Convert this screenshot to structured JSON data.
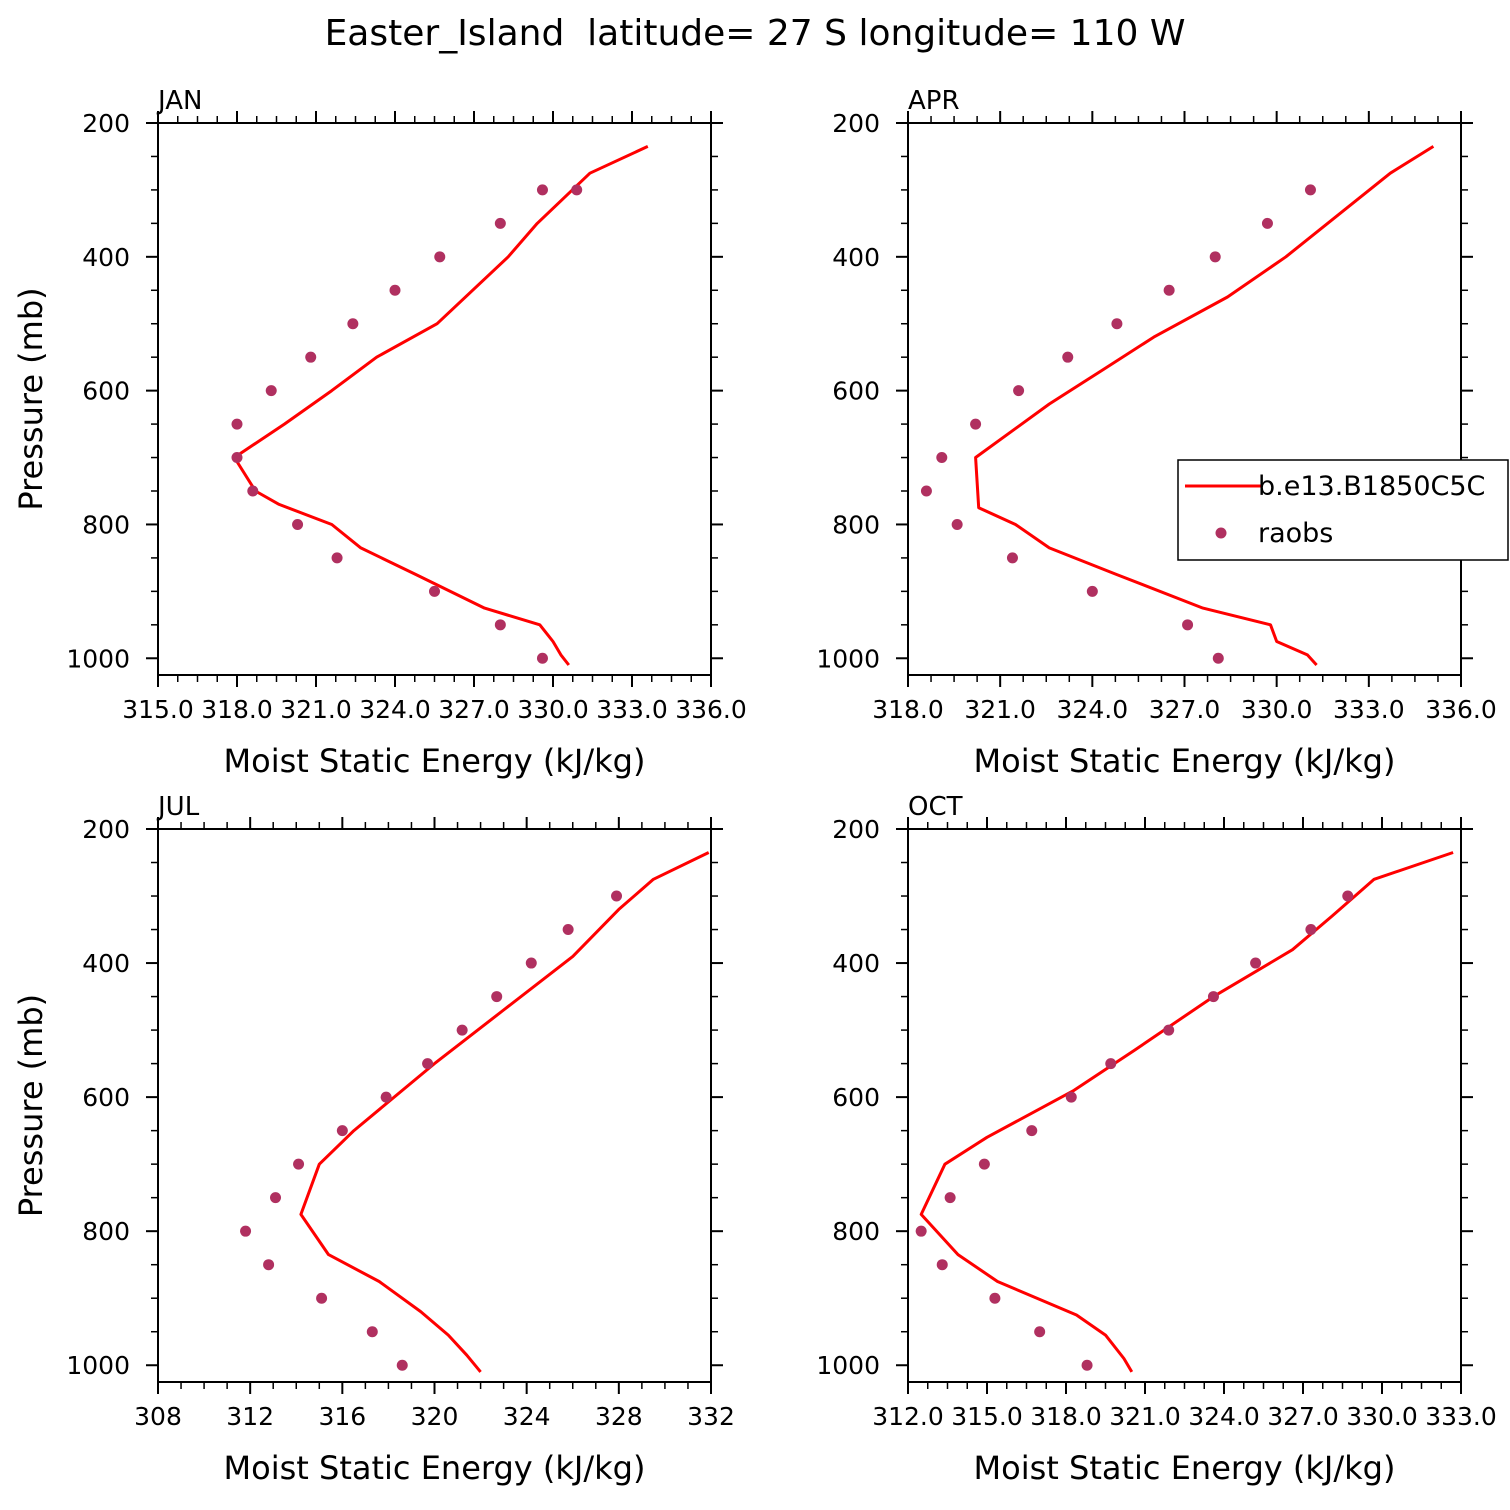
{
  "title": "Easter_Island  latitude= 27 S longitude= 110 W",
  "colors": {
    "model": "#ff0000",
    "obs": "#b03060",
    "axis": "#000000"
  },
  "legend": {
    "placement": "right-middle of APR panel",
    "model_label": "b.e13.B1850C5C",
    "obs_label": "raobs"
  },
  "chart_data": [
    {
      "type": "line",
      "panel": "JAN",
      "xlabel": "Moist Static Energy (kJ/kg)",
      "ylabel": "Pressure (mb)",
      "xlim": [
        315.0,
        336.0
      ],
      "x_ticks": [
        "315.0",
        "318.0",
        "321.0",
        "324.0",
        "327.0",
        "330.0",
        "333.0",
        "336.0"
      ],
      "x_tick_values": [
        315,
        318,
        321,
        324,
        327,
        330,
        333,
        336
      ],
      "ylim": [
        1025,
        200
      ],
      "y_ticks": [
        200,
        400,
        600,
        800,
        1000
      ],
      "series": [
        {
          "name": "b.e13.B1850C5C",
          "kind": "line",
          "x": [
            330.6,
            330.3,
            330.0,
            329.5,
            327.4,
            324.8,
            322.7,
            321.6,
            319.6,
            318.7,
            317.9,
            319.8,
            321.6,
            323.3,
            325.6,
            328.3,
            329.4,
            331.4,
            333.6
          ],
          "p": [
            1010,
            995,
            975,
            950,
            925,
            875,
            835,
            800,
            770,
            750,
            700,
            650,
            600,
            550,
            500,
            400,
            350,
            275,
            235
          ]
        },
        {
          "name": "raobs",
          "kind": "scatter",
          "x": [
            329.6,
            328.0,
            325.5,
            321.8,
            320.3,
            318.6,
            318.0,
            318.0,
            319.3,
            320.8,
            322.4,
            324.0,
            325.7,
            328.0,
            329.6,
            330.9
          ],
          "p": [
            1000,
            950,
            900,
            850,
            800,
            750,
            700,
            650,
            600,
            550,
            500,
            450,
            400,
            350,
            300,
            300
          ]
        }
      ]
    },
    {
      "type": "line",
      "panel": "APR",
      "xlabel": "Moist Static Energy (kJ/kg)",
      "ylabel": "",
      "xlim": [
        318.0,
        336.0
      ],
      "x_ticks": [
        "318.0",
        "321.0",
        "324.0",
        "327.0",
        "330.0",
        "333.0",
        "336.0"
      ],
      "x_tick_values": [
        318,
        321,
        324,
        327,
        330,
        333,
        336
      ],
      "ylim": [
        1025,
        200
      ],
      "y_ticks": [
        200,
        400,
        600,
        800,
        1000
      ],
      "series": [
        {
          "name": "b.e13.B1850C5C",
          "kind": "line",
          "x": [
            331.3,
            331.0,
            330.0,
            329.8,
            327.6,
            324.8,
            322.6,
            321.5,
            320.3,
            320.2,
            322.6,
            324.3,
            326.0,
            328.4,
            330.3,
            333.7,
            335.1
          ],
          "p": [
            1010,
            995,
            975,
            950,
            925,
            875,
            835,
            800,
            775,
            700,
            620,
            570,
            520,
            460,
            400,
            275,
            235
          ]
        },
        {
          "name": "raobs",
          "kind": "scatter",
          "x": [
            328.1,
            327.1,
            324.0,
            321.4,
            319.6,
            318.6,
            319.1,
            320.2,
            321.6,
            323.2,
            324.8,
            326.5,
            328.0,
            329.7,
            331.1
          ],
          "p": [
            1000,
            950,
            900,
            850,
            800,
            750,
            700,
            650,
            600,
            550,
            500,
            450,
            400,
            350,
            300
          ]
        }
      ]
    },
    {
      "type": "line",
      "panel": "JUL",
      "xlabel": "Moist Static Energy (kJ/kg)",
      "ylabel": "Pressure (mb)",
      "xlim": [
        308,
        332
      ],
      "x_ticks": [
        "308",
        "312",
        "316",
        "320",
        "324",
        "328",
        "332"
      ],
      "x_tick_values": [
        308,
        312,
        316,
        320,
        324,
        328,
        332
      ],
      "ylim": [
        1025,
        200
      ],
      "y_ticks": [
        200,
        400,
        600,
        800,
        1000
      ],
      "series": [
        {
          "name": "b.e13.B1850C5C",
          "kind": "line",
          "x": [
            322.0,
            321.4,
            320.6,
            319.4,
            317.6,
            315.4,
            314.2,
            315.0,
            316.5,
            320.0,
            323.0,
            326.0,
            328.0,
            329.5,
            331.9
          ],
          "p": [
            1010,
            985,
            955,
            920,
            875,
            835,
            775,
            700,
            650,
            550,
            470,
            390,
            320,
            275,
            235
          ]
        },
        {
          "name": "raobs",
          "kind": "scatter",
          "x": [
            318.6,
            317.3,
            315.1,
            312.8,
            311.8,
            313.1,
            314.1,
            316.0,
            317.9,
            319.7,
            321.2,
            322.7,
            324.2,
            325.8,
            327.9
          ],
          "p": [
            1000,
            950,
            900,
            850,
            800,
            750,
            700,
            650,
            600,
            550,
            500,
            450,
            400,
            350,
            300
          ]
        }
      ]
    },
    {
      "type": "line",
      "panel": "OCT",
      "xlabel": "Moist Static Energy (kJ/kg)",
      "ylabel": "",
      "xlim": [
        312.0,
        333.0
      ],
      "x_ticks": [
        "312.0",
        "315.0",
        "318.0",
        "321.0",
        "324.0",
        "327.0",
        "330.0",
        "333.0"
      ],
      "x_tick_values": [
        312,
        315,
        318,
        321,
        324,
        327,
        330,
        333
      ],
      "ylim": [
        1025,
        200
      ],
      "y_ticks": [
        200,
        400,
        600,
        800,
        1000
      ],
      "series": [
        {
          "name": "b.e13.B1850C5C",
          "kind": "line",
          "x": [
            320.5,
            320.2,
            319.5,
            318.4,
            315.4,
            313.9,
            312.5,
            313.4,
            315.0,
            318.3,
            320.6,
            323.6,
            326.6,
            328.1,
            329.7,
            332.7
          ],
          "p": [
            1010,
            990,
            955,
            925,
            875,
            835,
            775,
            700,
            660,
            590,
            530,
            450,
            380,
            330,
            275,
            235
          ]
        },
        {
          "name": "raobs",
          "kind": "scatter",
          "x": [
            318.8,
            317.0,
            315.3,
            313.3,
            312.5,
            313.6,
            314.9,
            316.7,
            318.2,
            319.7,
            321.9,
            323.6,
            325.2,
            327.3,
            328.7
          ],
          "p": [
            1000,
            950,
            900,
            850,
            800,
            750,
            700,
            650,
            600,
            550,
            500,
            450,
            400,
            350,
            300
          ]
        }
      ]
    }
  ]
}
